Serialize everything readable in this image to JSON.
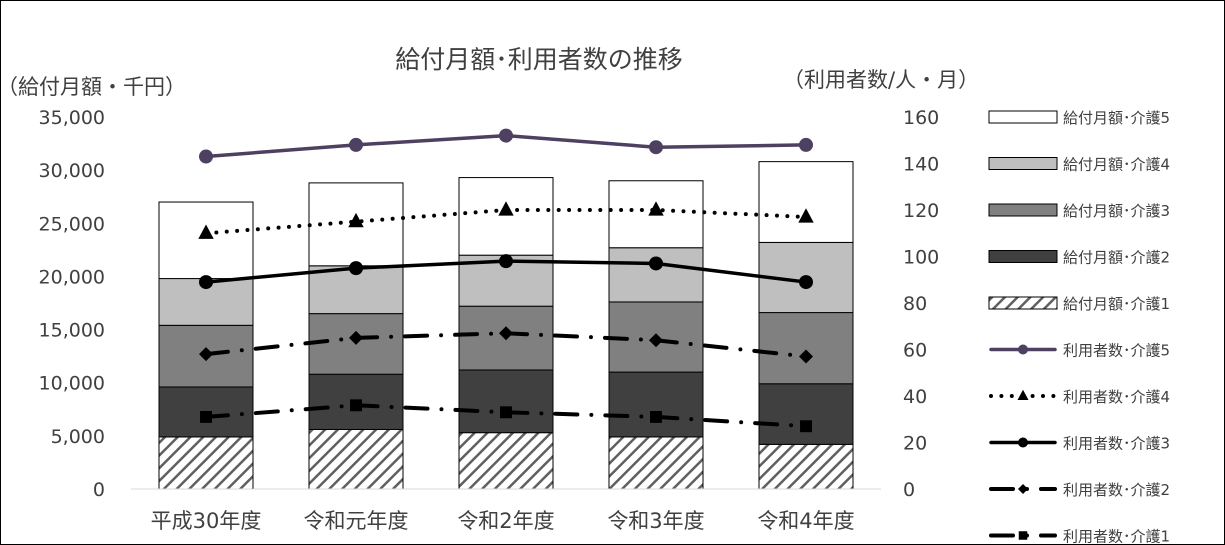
{
  "chart_data": {
    "type": "bar",
    "title": "給付月額･利用者数の推移",
    "ylabel": "（給付月額・千円）",
    "y2label": "（利用者数/人・月）",
    "categories": [
      "平成30年度",
      "令和元年度",
      "令和2年度",
      "令和3年度",
      "令和4年度"
    ],
    "ylim": [
      0,
      35000
    ],
    "y2lim": [
      0,
      160
    ],
    "yticks": [
      "0",
      "5,000",
      "10,000",
      "15,000",
      "20,000",
      "25,000",
      "30,000",
      "35,000"
    ],
    "y2ticks": [
      "0",
      "20",
      "40",
      "60",
      "80",
      "100",
      "120",
      "140",
      "160"
    ],
    "grid": false,
    "legend_position": "right",
    "bar_series": [
      {
        "name": "給付月額･介護1",
        "values": [
          4900,
          5600,
          5300,
          4900,
          4200
        ],
        "fill": "hatch"
      },
      {
        "name": "給付月額･介護2",
        "values": [
          4700,
          5200,
          5900,
          6100,
          5700
        ],
        "fill": "#404040"
      },
      {
        "name": "給付月額･介護3",
        "values": [
          5800,
          5700,
          6000,
          6600,
          6700
        ],
        "fill": "#808080"
      },
      {
        "name": "給付月額･介護4",
        "values": [
          4400,
          4500,
          4800,
          5100,
          6600
        ],
        "fill": "#bfbfbf"
      },
      {
        "name": "給付月額･介護5",
        "values": [
          7200,
          7800,
          7300,
          6300,
          7600
        ],
        "fill": "#ffffff"
      }
    ],
    "line_series": [
      {
        "name": "利用者数･介護5",
        "values": [
          143,
          148,
          152,
          147,
          148
        ],
        "color": "#4e4060",
        "style": "solid",
        "marker": "circle"
      },
      {
        "name": "利用者数･介護4",
        "values": [
          110,
          115,
          120,
          120,
          117
        ],
        "color": "#000000",
        "style": "dotted",
        "marker": "triangle"
      },
      {
        "name": "利用者数･介護3",
        "values": [
          89,
          95,
          98,
          97,
          89
        ],
        "color": "#000000",
        "style": "solid",
        "marker": "circle"
      },
      {
        "name": "利用者数･介護2",
        "values": [
          58,
          65,
          67,
          64,
          57
        ],
        "color": "#000000",
        "style": "dashdot",
        "marker": "diamond"
      },
      {
        "name": "利用者数･介護1",
        "values": [
          31,
          36,
          33,
          31,
          27
        ],
        "color": "#000000",
        "style": "dashdot",
        "marker": "square"
      }
    ]
  }
}
